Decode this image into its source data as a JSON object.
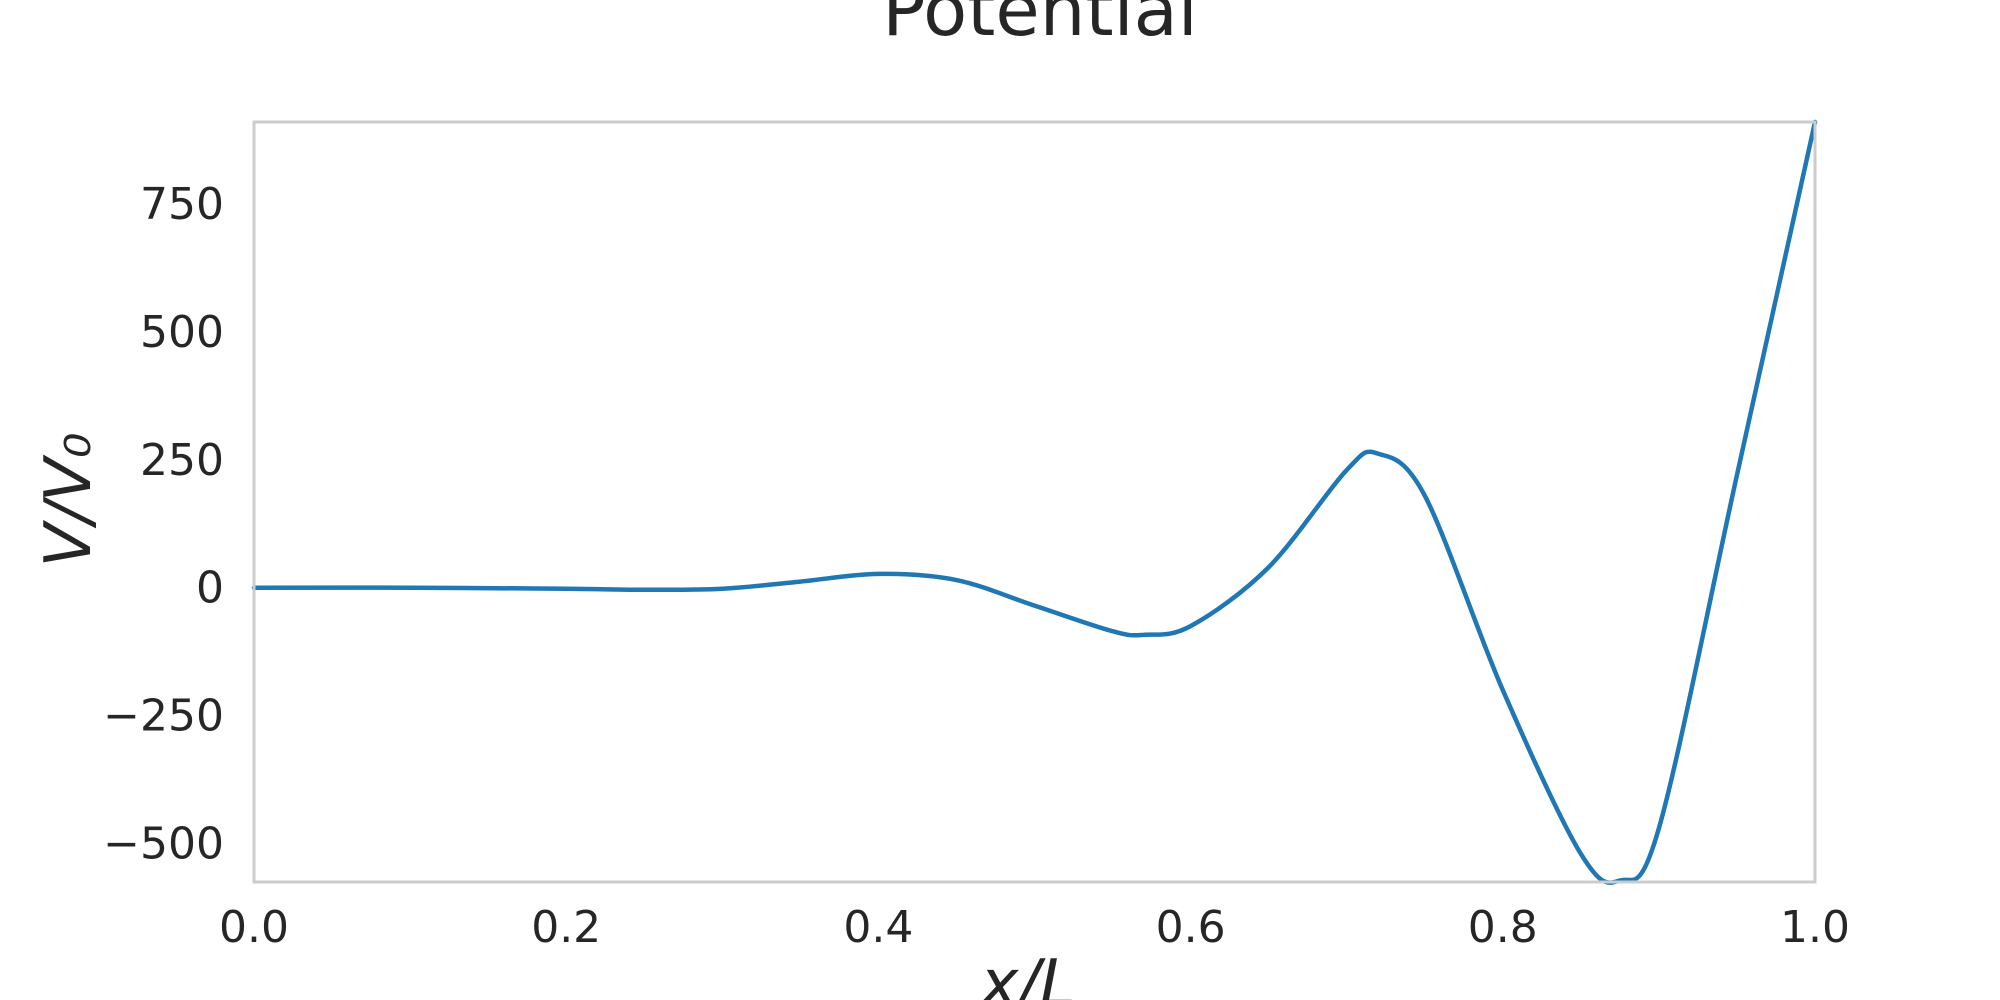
{
  "chart_data": {
    "type": "line",
    "title": "Potential",
    "xlabel": "x/L",
    "ylabel": "V/V₀",
    "xlim": [
      0.0,
      1.0
    ],
    "ylim": [
      -575,
      910
    ],
    "x_ticks": [
      "0.0",
      "0.2",
      "0.4",
      "0.6",
      "0.8",
      "1.0"
    ],
    "x_tick_values": [
      0.0,
      0.2,
      0.4,
      0.6,
      0.8,
      1.0
    ],
    "y_ticks": [
      "−500",
      "−250",
      "0",
      "250",
      "500",
      "750"
    ],
    "y_tick_values": [
      -500,
      -250,
      0,
      250,
      500,
      750
    ],
    "grid": false,
    "legend": "none",
    "colors": {
      "line": "#1f77b4",
      "frame": "#cccccc",
      "text": "#262626"
    },
    "series": [
      {
        "x": [
          0.0,
          0.1,
          0.2,
          0.25,
          0.3,
          0.35,
          0.4,
          0.45,
          0.5,
          0.55,
          0.57,
          0.6,
          0.65,
          0.7,
          0.72,
          0.75,
          0.8,
          0.85,
          0.875,
          0.9,
          0.95,
          1.0
        ],
        "y": [
          0,
          0,
          -2,
          -4,
          -2,
          12,
          27,
          15,
          -35,
          -85,
          -92,
          -75,
          40,
          230,
          262,
          180,
          -200,
          -520,
          -572,
          -470,
          220,
          910
        ]
      }
    ]
  }
}
